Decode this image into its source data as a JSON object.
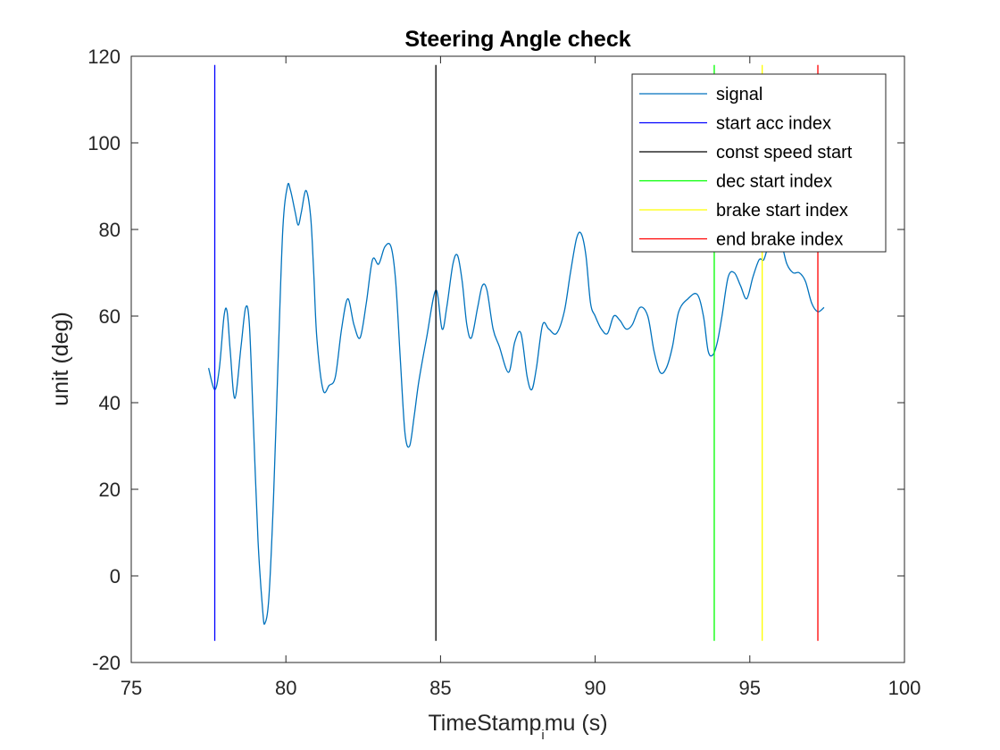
{
  "chart_data": {
    "type": "line",
    "title": "Steering Angle check",
    "xlabel_main": "TimeStamp",
    "xlabel_sub": "i",
    "xlabel_rest": "mu (s)",
    "ylabel": "unit (deg)",
    "xlim": [
      75,
      100
    ],
    "ylim": [
      -20,
      120
    ],
    "xticks": [
      75,
      80,
      85,
      90,
      95,
      100
    ],
    "yticks": [
      -20,
      0,
      20,
      40,
      60,
      80,
      100,
      120
    ],
    "grid": false,
    "legend_position": "top-right",
    "series": [
      {
        "name": "signal",
        "color": "#0072BD",
        "x": [
          77.5,
          77.7,
          77.85,
          78.0,
          78.1,
          78.2,
          78.35,
          78.55,
          78.7,
          78.82,
          78.95,
          79.1,
          79.25,
          79.32,
          79.45,
          79.6,
          79.75,
          79.9,
          80.05,
          80.15,
          80.3,
          80.4,
          80.5,
          80.65,
          80.8,
          80.9,
          81.0,
          81.2,
          81.4,
          81.6,
          81.8,
          82.0,
          82.2,
          82.4,
          82.6,
          82.8,
          83.0,
          83.2,
          83.4,
          83.55,
          83.7,
          83.85,
          84.0,
          84.15,
          84.3,
          84.55,
          84.85,
          85.05,
          85.2,
          85.4,
          85.55,
          85.7,
          85.85,
          86.0,
          86.2,
          86.35,
          86.5,
          86.7,
          86.9,
          87.2,
          87.4,
          87.6,
          87.8,
          87.95,
          88.1,
          88.3,
          88.5,
          88.75,
          89.0,
          89.2,
          89.4,
          89.55,
          89.7,
          89.85,
          90.0,
          90.2,
          90.4,
          90.6,
          90.8,
          91.0,
          91.2,
          91.45,
          91.7,
          91.9,
          92.1,
          92.3,
          92.5,
          92.7,
          93.0,
          93.3,
          93.5,
          93.65,
          93.8,
          93.95,
          94.1,
          94.3,
          94.5,
          94.7,
          94.9,
          95.1,
          95.3,
          95.45,
          95.6,
          95.75,
          95.9,
          96.05,
          96.2,
          96.4,
          96.6,
          96.8,
          97.0,
          97.2,
          97.4
        ],
        "y": [
          48,
          43,
          48,
          60,
          61,
          52,
          41,
          53,
          62,
          58,
          35,
          8,
          -8,
          -11,
          -5,
          18,
          50,
          80,
          90,
          89,
          84,
          81,
          84,
          89,
          83,
          70,
          55,
          43,
          44,
          46,
          57,
          64,
          58,
          55,
          63,
          73,
          72,
          76,
          76,
          68,
          50,
          33,
          30,
          37,
          45,
          55,
          66,
          57,
          62,
          72,
          74,
          68,
          58,
          55,
          62,
          67,
          66,
          57,
          53,
          47,
          54,
          56,
          46,
          43,
          48,
          58,
          57,
          56,
          61,
          70,
          78,
          79,
          74,
          63,
          60,
          57,
          56,
          60,
          59,
          57,
          58,
          62,
          60,
          52,
          47,
          48,
          53,
          61,
          64,
          65,
          60,
          52,
          51,
          54,
          60,
          69,
          70,
          67,
          64,
          69,
          73,
          73,
          76,
          75,
          78,
          76,
          72,
          70,
          70,
          68,
          63,
          61,
          62
        ]
      },
      {
        "name": "start acc index",
        "color": "#0000FF",
        "x": [
          77.7,
          77.7
        ],
        "y": [
          -15,
          118
        ]
      },
      {
        "name": "const speed start",
        "color": "#000000",
        "x": [
          84.85,
          84.85
        ],
        "y": [
          -15,
          118
        ]
      },
      {
        "name": "dec start index",
        "color": "#00FF00",
        "x": [
          93.85,
          93.85
        ],
        "y": [
          -15,
          118
        ]
      },
      {
        "name": "brake start index",
        "color": "#FFFF00",
        "x": [
          95.4,
          95.4
        ],
        "y": [
          -15,
          118
        ]
      },
      {
        "name": "end brake index",
        "color": "#FF0000",
        "x": [
          97.2,
          97.2
        ],
        "y": [
          -15,
          118
        ]
      }
    ]
  }
}
